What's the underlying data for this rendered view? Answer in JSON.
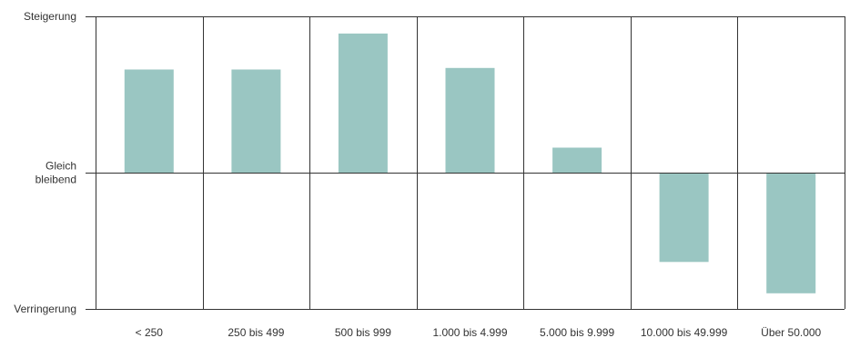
{
  "chart_data": {
    "type": "bar",
    "title": "",
    "xlabel": "",
    "ylabel": "",
    "categories": [
      "< 250",
      "250 bis 499",
      "500 bis 999",
      "1.000 bis 4.999",
      "5.000 bis 9.999",
      "10.000 bis 49.999",
      "Über 50.000"
    ],
    "values": [
      0.66,
      0.66,
      0.89,
      0.67,
      0.16,
      -0.57,
      -0.77
    ],
    "ylim": [
      -0.87,
      1.0
    ],
    "y_tick_values": [
      1.0,
      0.0,
      -0.87
    ],
    "y_tick_labels": [
      [
        "Steigerung"
      ],
      [
        "Gleich",
        "bleibend"
      ],
      [
        "Verringerung"
      ]
    ],
    "bar_color": "#9ac6c2",
    "grid": "vertical separators between categories",
    "legend": "none"
  }
}
